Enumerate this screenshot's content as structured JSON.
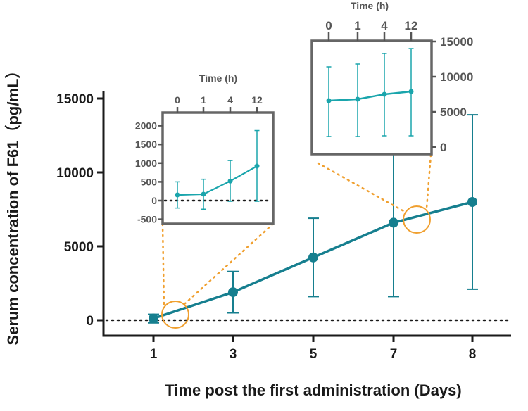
{
  "colors": {
    "series": "#167f8f",
    "inset_series": "#1aa5ac",
    "highlight": "#f0a030",
    "frame": "#666666",
    "axis": "#1a1a1a"
  },
  "chart_data": [
    {
      "type": "line",
      "title": "",
      "xlabel": "Time post the first administration (Days)",
      "ylabel": "Serum concentration of F61（pg/mL）",
      "x_tick_labels": [
        "1",
        "3",
        "5",
        "7",
        "8"
      ],
      "y_tick_labels": [
        "0",
        "5000",
        "10000",
        "15000"
      ],
      "ylim": [
        -800,
        15000
      ],
      "reference_line": 0,
      "series": [
        {
          "points": [
            {
              "x": "1",
              "y": 120,
              "err_low": -180,
              "err_high": 400
            },
            {
              "x": "3",
              "y": 1900,
              "err_low": 500,
              "err_high": 3300
            },
            {
              "x": "5",
              "y": 4250,
              "err_low": 1600,
              "err_high": 6900
            },
            {
              "x": "7",
              "y": 6600,
              "err_low": 1600,
              "err_high": 11700
            },
            {
              "x": "8",
              "y": 8000,
              "err_low": 2100,
              "err_high": 13900
            }
          ]
        }
      ]
    },
    {
      "type": "line",
      "title": "",
      "xlabel": "Time (h)",
      "ylabel": "",
      "x_tick_labels": [
        "0",
        "1",
        "4",
        "12"
      ],
      "y_tick_labels": [
        "-500",
        "0",
        "500",
        "1000",
        "1500",
        "2000"
      ],
      "ylim": [
        -500,
        2000
      ],
      "reference_line": 0,
      "series": [
        {
          "points": [
            {
              "x": "0",
              "y": 150,
              "err_low": -200,
              "err_high": 500
            },
            {
              "x": "1",
              "y": 170,
              "err_low": -230,
              "err_high": 570
            },
            {
              "x": "4",
              "y": 520,
              "err_low": -20,
              "err_high": 1070
            },
            {
              "x": "12",
              "y": 920,
              "err_low": -20,
              "err_high": 1870
            }
          ]
        }
      ]
    },
    {
      "type": "line",
      "title": "",
      "xlabel": "Time (h)",
      "ylabel": "",
      "x_tick_labels": [
        "0",
        "1",
        "4",
        "12"
      ],
      "y_tick_labels": [
        "0",
        "5000",
        "10000",
        "15000"
      ],
      "ylim": [
        -500,
        15000
      ],
      "series": [
        {
          "points": [
            {
              "x": "0",
              "y": 6600,
              "err_low": 1500,
              "err_high": 11400
            },
            {
              "x": "1",
              "y": 6800,
              "err_low": 1500,
              "err_high": 11800
            },
            {
              "x": "4",
              "y": 7500,
              "err_low": 1600,
              "err_high": 13300
            },
            {
              "x": "12",
              "y": 7900,
              "err_low": 1600,
              "err_high": 14000
            }
          ]
        }
      ]
    }
  ]
}
